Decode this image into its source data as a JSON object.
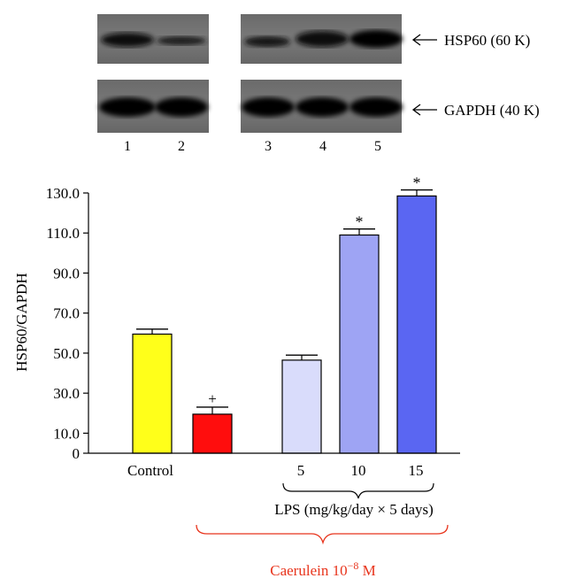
{
  "blot": {
    "rows": [
      {
        "label": "HSP60 (60 K)"
      },
      {
        "label": "GAPDH (40 K)"
      }
    ],
    "lanes": [
      "1",
      "2",
      "3",
      "4",
      "5"
    ]
  },
  "chart_data": {
    "type": "bar",
    "ylabel": "HSP60/GAPDH",
    "ylim": [
      0,
      130
    ],
    "yticks": [
      "0",
      "10.0",
      "30.0",
      "50.0",
      "70.0",
      "90.0",
      "110.0",
      "130.0"
    ],
    "bars": [
      {
        "value": 59.5,
        "error": 2.5,
        "color": "#ffff1a",
        "marker": ""
      },
      {
        "value": 19.5,
        "error": 3.5,
        "color": "#ff0d0d",
        "marker": "+"
      },
      {
        "value": 46.5,
        "error": 2.5,
        "color": "#d9dcfb",
        "marker": ""
      },
      {
        "value": 109.0,
        "error": 3.0,
        "color": "#9ea4f4",
        "marker": "*"
      },
      {
        "value": 128.5,
        "error": 3.0,
        "color": "#5a66f2",
        "marker": "*"
      }
    ],
    "category_labels": [
      "Control",
      "5",
      "10",
      "15"
    ],
    "group_labels": {
      "lps": "LPS (mg/kg/day × 5 days)",
      "caerulein": "Caerulein 10",
      "caerulein_exp": "−8",
      "caerulein_unit": " M"
    }
  }
}
